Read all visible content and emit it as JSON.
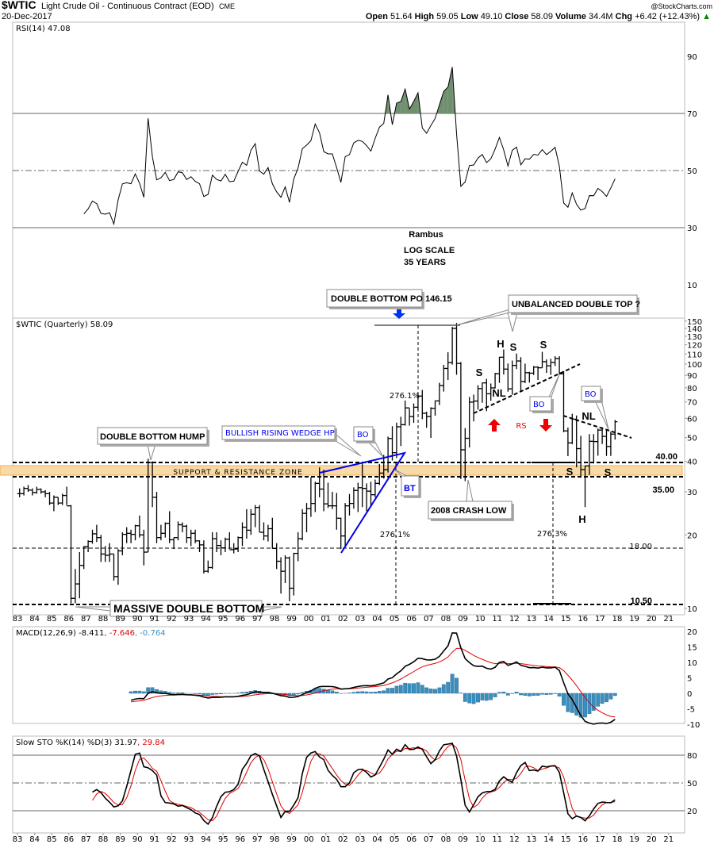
{
  "header": {
    "symbol": "$WTIC",
    "name": "Light Crude Oil - Continuous Contract (EOD)",
    "exchange": "CME",
    "date": "20-Dec-2017",
    "brand": "@StockCharts.com",
    "open_label": "Open",
    "open": "51.64",
    "high_label": "High",
    "high": "59.05",
    "low_label": "Low",
    "low": "49.10",
    "close_label": "Close",
    "close": "58.09",
    "volume_label": "Volume",
    "volume": "34.4M",
    "chg_label": "Chg",
    "chg": "+6.42 (+12.43%)",
    "chg_arrow": "▲"
  },
  "rsi": {
    "legend": "RSI(14) 47.08",
    "ticks": [
      "90",
      "70",
      "50",
      "30",
      "10"
    ]
  },
  "price": {
    "legend": "$WTIC (Quarterly) 58.09",
    "ticks": [
      "150",
      "140",
      "130",
      "120",
      "110",
      "100",
      "90",
      "80",
      "70",
      "60",
      "50",
      "40",
      "30",
      "20",
      "10"
    ]
  },
  "macd": {
    "legend_main": "MACD(12,26,9) -8.411",
    "legend_signal": ", -7.646",
    "legend_hist": ", -0.764",
    "ticks": [
      "20",
      "15",
      "10",
      "5",
      "0",
      "-5",
      "-10"
    ]
  },
  "sto": {
    "legend_main": "Slow STO %K(14) %D(3) 31.97",
    "legend_d": ", 29.84",
    "ticks": [
      "80",
      "50",
      "20"
    ]
  },
  "x_labels": [
    "83",
    "84",
    "85",
    "86",
    "87",
    "88",
    "89",
    "90",
    "91",
    "92",
    "93",
    "94",
    "95",
    "96",
    "97",
    "98",
    "99",
    "00",
    "01",
    "02",
    "03",
    "04",
    "05",
    "06",
    "07",
    "08",
    "09",
    "10",
    "11",
    "12",
    "13",
    "14",
    "15",
    "16",
    "17",
    "18",
    "19",
    "20",
    "21"
  ],
  "annotations": {
    "author": "Rambus",
    "log_scale": "LOG SCALE",
    "years": "35 YEARS",
    "double_bottom_po": "DOUBLE BOTTOM PO 146.15",
    "unbalanced": "UNBALANCED DOUBLE TOP ?",
    "hump": "DOUBLE BOTTOM HUMP",
    "wedge": "BULLISH RISING WEDGE HP",
    "bo": "BO",
    "bt": "BT",
    "crash_low": "2008 CRASH LOW",
    "massive": "MASSIVE DOUBLE BOTTOM",
    "sr_zone": "SUPPORT & RESISTANCE ZONE",
    "pct1": "276.1%",
    "pct2": "276.1%",
    "pct3": "276.3%",
    "lvl40": "40.00",
    "lvl35": "35.00",
    "lvl18": "18.00",
    "lvl1050": "10.50",
    "h": "H",
    "s": "S",
    "nl": "NL",
    "rs": "RS"
  },
  "colors": {
    "sr_fill": "#f8d9a8",
    "sr_border": "#f0b048",
    "rsi_fill": "#6f8f6f",
    "signal": "#e00000",
    "hist": "#3a8fc0",
    "wedge": "#0000ee",
    "arrow_red": "#ee0000",
    "arrow_blue": "#0033ee"
  },
  "chart_data": {
    "type": "ohlc",
    "title": "$WTIC Light Crude Oil - Continuous Contract (EOD) Quarterly",
    "scale": "log",
    "ylim": [
      9.4,
      155
    ],
    "start": "1983Q1",
    "end": "2017Q4",
    "indicators": [
      "RSI(14)",
      "MACD(12,26,9)",
      "Slow STO %K(14) %D(3)"
    ],
    "hlc": [
      [
        31,
        28.5,
        29.5
      ],
      [
        31.5,
        29,
        31
      ],
      [
        32,
        30,
        30.5
      ],
      [
        31,
        29,
        29.8
      ],
      [
        31.5,
        29.5,
        30.7
      ],
      [
        31,
        29.5,
        30
      ],
      [
        30.5,
        28.5,
        29.5
      ],
      [
        30,
        26.5,
        27
      ],
      [
        29,
        25,
        28.5
      ],
      [
        28.5,
        26.5,
        27
      ],
      [
        29.5,
        26.5,
        29
      ],
      [
        31.5,
        26.5,
        26.3
      ],
      [
        26.5,
        10.5,
        11
      ],
      [
        14.5,
        10.5,
        12.6
      ],
      [
        17,
        11,
        15
      ],
      [
        18,
        14.5,
        17.9
      ],
      [
        19,
        17,
        18.8
      ],
      [
        21,
        18.4,
        20.2
      ],
      [
        22,
        18.7,
        19.5
      ],
      [
        20,
        15.5,
        16.7
      ],
      [
        18,
        15.5,
        16.5
      ],
      [
        18.5,
        15.5,
        16.7
      ],
      [
        16.7,
        13,
        13.5
      ],
      [
        17.5,
        12.5,
        17.2
      ],
      [
        20.5,
        16.5,
        20.1
      ],
      [
        21.5,
        18.5,
        20.3
      ],
      [
        21,
        18.5,
        20.1
      ],
      [
        22,
        19,
        21.8
      ],
      [
        24,
        19.5,
        20
      ],
      [
        21,
        15,
        17
      ],
      [
        41,
        17,
        39.5
      ],
      [
        40,
        26,
        28.5
      ],
      [
        30,
        18.5,
        19.5
      ],
      [
        22,
        19,
        20.3
      ],
      [
        22.5,
        19.5,
        22.3
      ],
      [
        25,
        18.5,
        19.1
      ],
      [
        19.5,
        17.5,
        19.5
      ],
      [
        22.7,
        19,
        22
      ],
      [
        22.5,
        20.5,
        21.7
      ],
      [
        22,
        18.5,
        19.5
      ],
      [
        21,
        18,
        20.3
      ],
      [
        21,
        18.5,
        18.9
      ],
      [
        19,
        17,
        18.2
      ],
      [
        19,
        13.9,
        14.2
      ],
      [
        15.7,
        14,
        14.7
      ],
      [
        20.5,
        14.5,
        19.3
      ],
      [
        20.5,
        17,
        18.1
      ],
      [
        19,
        16.5,
        17.7
      ],
      [
        19.5,
        17,
        19.2
      ],
      [
        20.5,
        17.5,
        17.4
      ],
      [
        18.5,
        16.8,
        17.5
      ],
      [
        19.7,
        17,
        19.5
      ],
      [
        22.5,
        18,
        21.5
      ],
      [
        25.5,
        19.3,
        20.9
      ],
      [
        25.5,
        20,
        24.3
      ],
      [
        26.5,
        21.5,
        25.9
      ],
      [
        26.5,
        20.5,
        20.5
      ],
      [
        22.5,
        19,
        19.8
      ],
      [
        22,
        18.8,
        21.2
      ],
      [
        23.5,
        17.6,
        17.6
      ],
      [
        18.5,
        14.5,
        15.6
      ],
      [
        16.2,
        11.5,
        14.2
      ],
      [
        16.5,
        12.7,
        16.1
      ],
      [
        16.3,
        10.7,
        12.1
      ],
      [
        16.9,
        11.3,
        16.8
      ],
      [
        20.5,
        15.6,
        19.3
      ],
      [
        25.5,
        19,
        24.5
      ],
      [
        27,
        20.5,
        25.6
      ],
      [
        34.4,
        23.7,
        26.9
      ],
      [
        33,
        24.8,
        32.5
      ],
      [
        37.8,
        28.5,
        30.8
      ],
      [
        37,
        25,
        26.8
      ],
      [
        32.7,
        25.8,
        26.3
      ],
      [
        30,
        25.5,
        26.3
      ],
      [
        29.7,
        21,
        23.4
      ],
      [
        23.5,
        17.5,
        19.8
      ],
      [
        27,
        17.9,
        26.3
      ],
      [
        29.4,
        24,
        26.9
      ],
      [
        31.3,
        25.6,
        30.4
      ],
      [
        32.7,
        24.8,
        31.2
      ],
      [
        39.9,
        26,
        31
      ],
      [
        32.5,
        25,
        30.2
      ],
      [
        33,
        26,
        29.2
      ],
      [
        33.7,
        28.5,
        32.5
      ],
      [
        39,
        32,
        35.8
      ],
      [
        42.5,
        34,
        37
      ],
      [
        50.5,
        36,
        49.6
      ],
      [
        55.7,
        40.3,
        43.4
      ],
      [
        57.6,
        41.3,
        55.4
      ],
      [
        60.9,
        46.2,
        56.5
      ],
      [
        70.9,
        56,
        66.2
      ],
      [
        66,
        56,
        61
      ],
      [
        69,
        57.5,
        66.6
      ],
      [
        75.3,
        65.1,
        74
      ],
      [
        78.4,
        59.5,
        62.9
      ],
      [
        63.9,
        54.9,
        61
      ],
      [
        66.6,
        49.9,
        65.9
      ],
      [
        70.9,
        61.5,
        70.7
      ],
      [
        83.9,
        68,
        81.7
      ],
      [
        99.3,
        77.2,
        96
      ],
      [
        111.8,
        86.1,
        101.5
      ],
      [
        142,
        99.5,
        140
      ],
      [
        147.3,
        90.5,
        100.6
      ],
      [
        102,
        33.9,
        44.6
      ],
      [
        54.7,
        33.2,
        49.7
      ],
      [
        73.4,
        45.6,
        69.9
      ],
      [
        75,
        58.3,
        70.6
      ],
      [
        82,
        65.1,
        79.4
      ],
      [
        83.9,
        69.5,
        83.8
      ],
      [
        87,
        64.2,
        75.6
      ],
      [
        83.3,
        70.8,
        79.9
      ],
      [
        92,
        79.5,
        91.4
      ],
      [
        107,
        83.8,
        106.7
      ],
      [
        114.8,
        90.6,
        95.4
      ],
      [
        100.6,
        77.1,
        79.2
      ],
      [
        103.4,
        74.9,
        98.8
      ],
      [
        110.5,
        95.4,
        103
      ],
      [
        106.8,
        77.3,
        84.9
      ],
      [
        100.4,
        83.6,
        92.2
      ],
      [
        93,
        84,
        91.8
      ],
      [
        98.2,
        90.3,
        97.2
      ],
      [
        98,
        86.1,
        96.6
      ],
      [
        112.2,
        96.5,
        102.3
      ],
      [
        104.5,
        92,
        98.4
      ],
      [
        105.2,
        90.4,
        101.6
      ],
      [
        107.7,
        98.2,
        105.4
      ],
      [
        107.7,
        90.8,
        91.2
      ],
      [
        93.5,
        52.6,
        53.3
      ],
      [
        55,
        42,
        47.6
      ],
      [
        62.6,
        47,
        59.5
      ],
      [
        61.6,
        37.8,
        45.1
      ],
      [
        50.9,
        34.3,
        37
      ],
      [
        38.4,
        26,
        38.3
      ],
      [
        51.7,
        35.2,
        48.3
      ],
      [
        51.7,
        39.2,
        48.2
      ],
      [
        54.5,
        42.2,
        53.7
      ],
      [
        55.2,
        47.1,
        50.6
      ],
      [
        54.2,
        42.1,
        46
      ],
      [
        52.9,
        42.1,
        51.7
      ],
      [
        59.05,
        49.1,
        58.09
      ]
    ],
    "horizontal_levels": [
      146.15,
      40,
      35,
      18,
      10.5
    ],
    "rsi_levels": [
      70,
      50,
      30
    ],
    "sto_levels": [
      80,
      50,
      20
    ]
  }
}
